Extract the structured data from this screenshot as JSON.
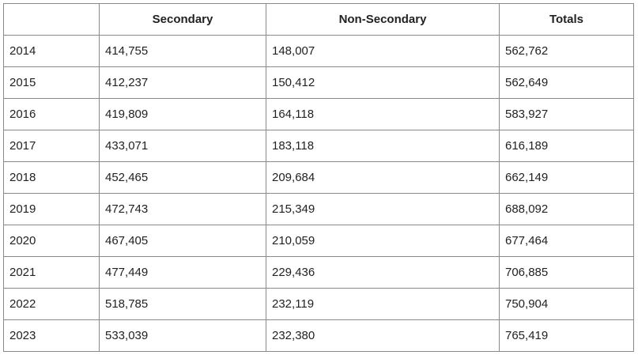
{
  "table": {
    "headers": [
      "",
      "Secondary",
      "Non-Secondary",
      "Totals"
    ],
    "rows": [
      [
        "2014",
        "414,755",
        "148,007",
        "562,762"
      ],
      [
        "2015",
        "412,237",
        "150,412",
        "562,649"
      ],
      [
        "2016",
        "419,809",
        "164,118",
        "583,927"
      ],
      [
        "2017",
        "433,071",
        "183,118",
        "616,189"
      ],
      [
        "2018",
        "452,465",
        "209,684",
        "662,149"
      ],
      [
        "2019",
        "472,743",
        "215,349",
        "688,092"
      ],
      [
        "2020",
        "467,405",
        "210,059",
        "677,464"
      ],
      [
        "2021",
        "477,449",
        "229,436",
        "706,885"
      ],
      [
        "2022",
        "518,785",
        "232,119",
        "750,904"
      ],
      [
        "2023",
        "533,039",
        "232,380",
        "765,419"
      ]
    ]
  },
  "colors": {
    "border": "#8a8a8a",
    "text": "#222222",
    "background": "#ffffff"
  }
}
